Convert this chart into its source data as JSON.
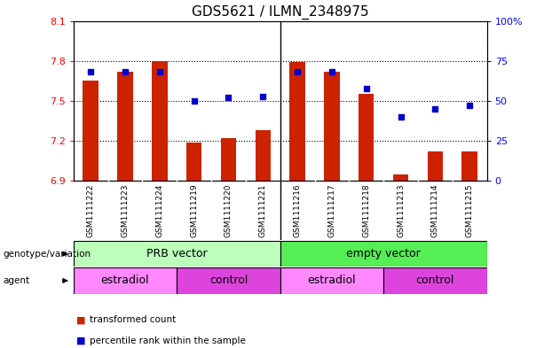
{
  "title": "GDS5621 / ILMN_2348975",
  "samples": [
    "GSM1111222",
    "GSM1111223",
    "GSM1111224",
    "GSM1111219",
    "GSM1111220",
    "GSM1111221",
    "GSM1111216",
    "GSM1111217",
    "GSM1111218",
    "GSM1111213",
    "GSM1111214",
    "GSM1111215"
  ],
  "bar_values": [
    7.65,
    7.72,
    7.8,
    7.19,
    7.22,
    7.28,
    7.79,
    7.72,
    7.55,
    6.95,
    7.12,
    7.12
  ],
  "dot_values": [
    68,
    68,
    68,
    50,
    52,
    53,
    68,
    68,
    58,
    40,
    45,
    47
  ],
  "ylim_left": [
    6.9,
    8.1
  ],
  "ylim_right": [
    0,
    100
  ],
  "yticks_left": [
    6.9,
    7.2,
    7.5,
    7.8,
    8.1
  ],
  "yticks_right": [
    0,
    25,
    50,
    75,
    100
  ],
  "bar_color": "#cc2200",
  "dot_color": "#0000cc",
  "bar_width": 0.45,
  "groups": [
    {
      "label": "PRB vector",
      "start": 0,
      "end": 6,
      "color": "#bbffbb"
    },
    {
      "label": "empty vector",
      "start": 6,
      "end": 12,
      "color": "#55ee55"
    }
  ],
  "agents": [
    {
      "label": "estradiol",
      "start": 0,
      "end": 3,
      "color": "#ff88ff"
    },
    {
      "label": "control",
      "start": 3,
      "end": 6,
      "color": "#dd44dd"
    },
    {
      "label": "estradiol",
      "start": 6,
      "end": 9,
      "color": "#ff88ff"
    },
    {
      "label": "control",
      "start": 9,
      "end": 12,
      "color": "#dd44dd"
    }
  ],
  "row_labels": [
    "genotype/variation",
    "agent"
  ],
  "legend_items": [
    "transformed count",
    "percentile rank within the sample"
  ],
  "background_color": "#ffffff",
  "plot_bg_color": "#ffffff",
  "tick_bg_color": "#dddddd"
}
